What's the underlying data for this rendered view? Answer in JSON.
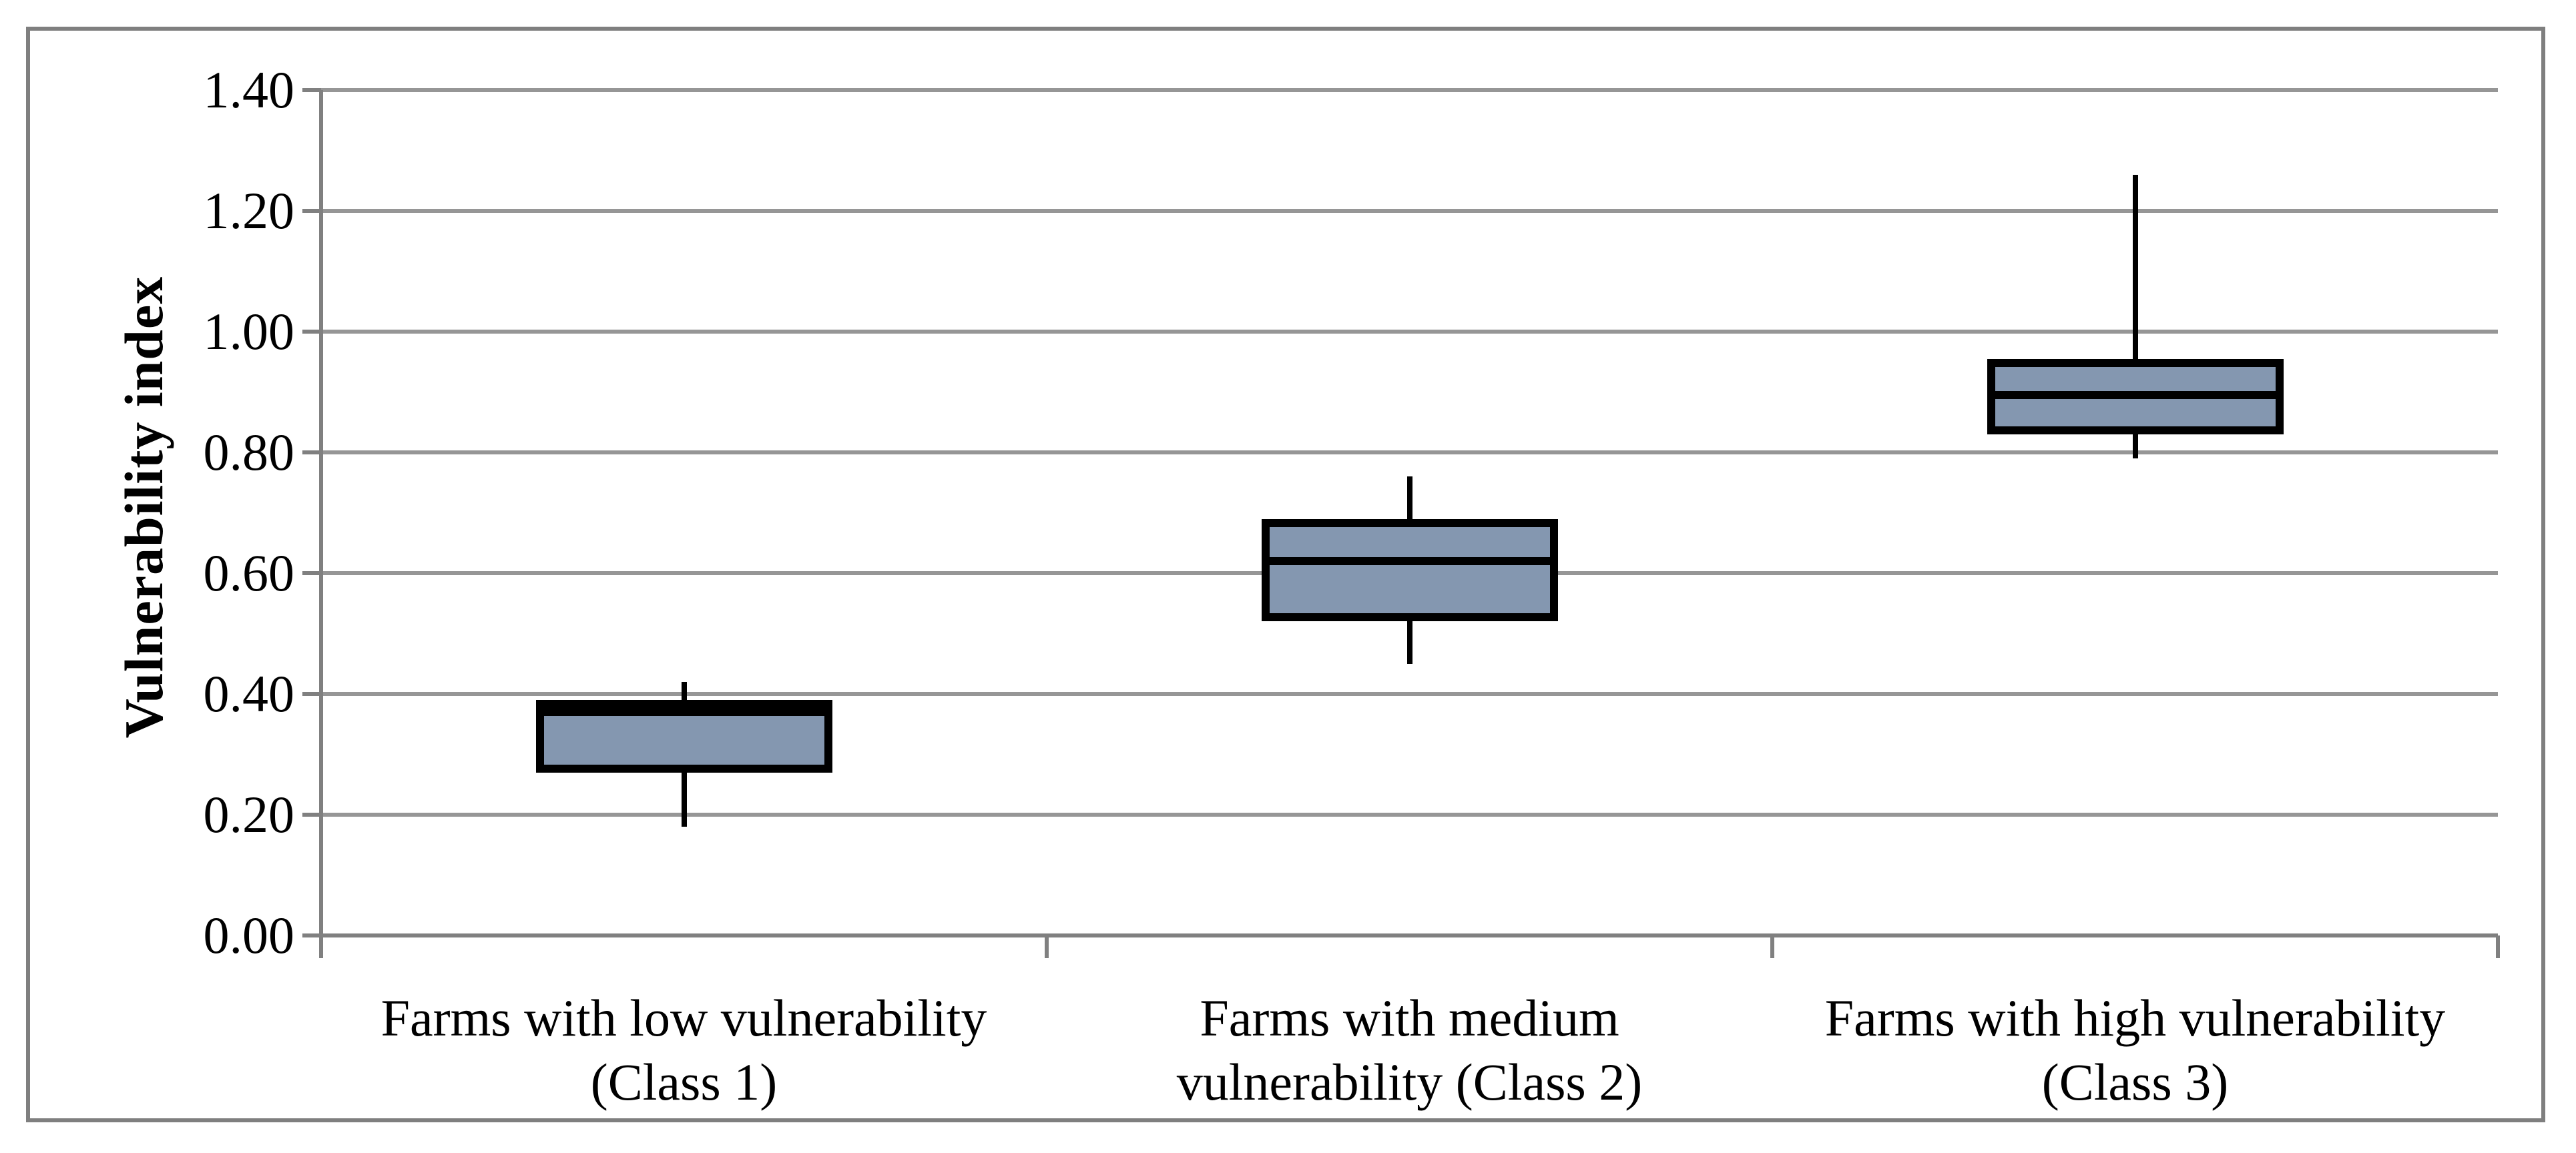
{
  "chart_data": {
    "type": "boxplot",
    "title": "",
    "ylabel": "Vulnerability index",
    "xlabel": "",
    "ylim": [
      0.0,
      1.4
    ],
    "ytick_step": 0.2,
    "ytick_labels": [
      "0.00",
      "0.20",
      "0.40",
      "0.60",
      "0.80",
      "1.00",
      "1.20",
      "1.40"
    ],
    "grid": true,
    "legend": "none",
    "whisker_caps": false,
    "categories": [
      {
        "label": "Farms with low vulnerability (Class 1)",
        "label_lines": [
          "Farms with low vulnerability",
          "(Class 1)"
        ],
        "whisker_low": 0.18,
        "q1": 0.27,
        "median": 0.37,
        "q3": 0.39,
        "whisker_high": 0.42
      },
      {
        "label": "Farms with medium vulnerability (Class 2)",
        "label_lines": [
          "Farms with medium",
          "vulnerability (Class 2)"
        ],
        "whisker_low": 0.45,
        "q1": 0.52,
        "median": 0.62,
        "q3": 0.69,
        "whisker_high": 0.76
      },
      {
        "label": "Farms with high vulnerability (Class 3)",
        "label_lines": [
          "Farms with high vulnerability",
          "(Class 3)"
        ],
        "whisker_low": 0.79,
        "q1": 0.83,
        "median": 0.895,
        "q3": 0.955,
        "whisker_high": 1.26
      }
    ],
    "colors": {
      "box_fill": "#8497B0",
      "box_border": "#000000",
      "median": "#000000",
      "whisker": "#000000",
      "gridline": "#969696",
      "axis": "#808080",
      "outer_border": "#7F7F7F",
      "background": "#FFFFFF",
      "text": "#000000"
    }
  }
}
